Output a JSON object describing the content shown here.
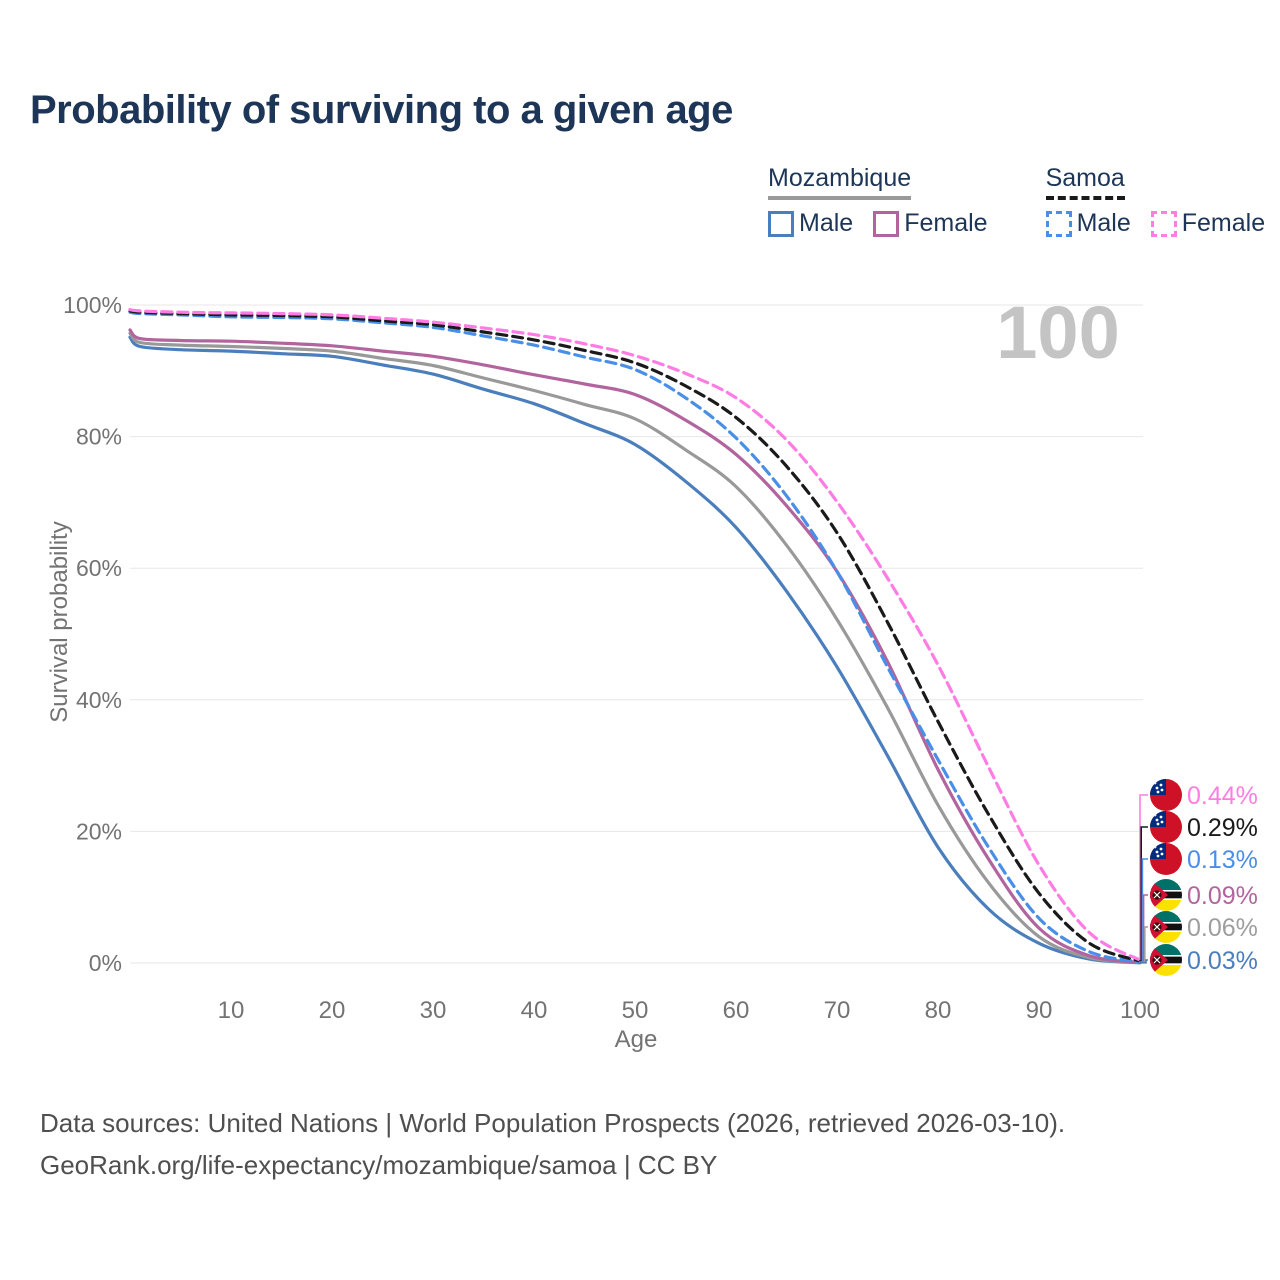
{
  "title": "Probability of surviving to a given age",
  "watermark": "100",
  "legend": {
    "groups": [
      {
        "label": "Mozambique",
        "line_style": "solid",
        "line_color": "#999999",
        "items": [
          {
            "label": "Male",
            "color": "#4a7ebc",
            "dashed": false
          },
          {
            "label": "Female",
            "color": "#b2649e",
            "dashed": false
          }
        ]
      },
      {
        "label": "Samoa",
        "line_style": "dashed",
        "line_color": "#1a1a1a",
        "items": [
          {
            "label": "Male",
            "color": "#4a8fe7",
            "dashed": true
          },
          {
            "label": "Female",
            "color": "#ff7ce4",
            "dashed": true
          }
        ]
      }
    ]
  },
  "colors": {
    "title": "#1d3557",
    "legend_text": "#1d3557",
    "axis_text": "#737373",
    "gridline": "#e7e7e7",
    "watermark": "#c4c4c4",
    "footer_text": "#4f4f4f"
  },
  "chart_data": {
    "type": "line",
    "title": "Probability of surviving to a given age",
    "xlabel": "Age",
    "ylabel": "Survival probability",
    "xlim": [
      0,
      100
    ],
    "ylim": [
      0,
      100
    ],
    "x_ticks": [
      10,
      20,
      30,
      40,
      50,
      60,
      70,
      80,
      90,
      100
    ],
    "y_ticks_percent": [
      0,
      20,
      40,
      60,
      80,
      100
    ],
    "grid": "horizontal",
    "legend_position": "top-right",
    "ages": [
      0,
      1,
      5,
      10,
      15,
      20,
      25,
      30,
      35,
      40,
      45,
      50,
      55,
      60,
      65,
      70,
      75,
      80,
      85,
      90,
      95,
      100
    ],
    "series": [
      {
        "name": "Mozambique Male",
        "country": "Mozambique",
        "sex": "Male",
        "line_style": "solid",
        "color": "#4a7ebc",
        "values": [
          95.1,
          93.7,
          93.2,
          93.0,
          92.6,
          92.2,
          90.9,
          89.5,
          87.2,
          85.0,
          82.0,
          78.8,
          73.2,
          66.2,
          56.5,
          45.0,
          31.5,
          17.6,
          8.2,
          3.0,
          0.6,
          0.03
        ]
      },
      {
        "name": "Mozambique",
        "country": "Mozambique",
        "sex": "Both",
        "line_style": "solid",
        "color": "#999999",
        "values": [
          95.7,
          94.3,
          93.9,
          93.7,
          93.4,
          93.0,
          91.9,
          90.8,
          88.9,
          87.0,
          84.9,
          82.7,
          78.0,
          72.4,
          63.5,
          52.2,
          38.8,
          24.0,
          12.2,
          4.0,
          0.8,
          0.06
        ]
      },
      {
        "name": "Mozambique Female",
        "country": "Mozambique",
        "sex": "Female",
        "line_style": "solid",
        "color": "#b2649e",
        "values": [
          96.2,
          94.9,
          94.6,
          94.5,
          94.2,
          93.8,
          93.0,
          92.2,
          90.9,
          89.4,
          88.0,
          86.4,
          82.5,
          77.3,
          69.5,
          59.5,
          45.8,
          29.4,
          15.8,
          5.3,
          1.1,
          0.09
        ]
      },
      {
        "name": "Samoa Male",
        "country": "Samoa",
        "sex": "Male",
        "line_style": "dashed",
        "color": "#4a8fe7",
        "values": [
          98.9,
          98.7,
          98.5,
          98.2,
          98.1,
          97.9,
          97.3,
          96.6,
          95.3,
          93.9,
          92.1,
          90.2,
          85.9,
          79.8,
          71.0,
          59.5,
          45.0,
          30.9,
          17.6,
          6.8,
          1.7,
          0.13
        ]
      },
      {
        "name": "Samoa",
        "country": "Samoa",
        "sex": "Both",
        "line_style": "dashed",
        "color": "#1a1a1a",
        "values": [
          99.1,
          98.9,
          98.7,
          98.5,
          98.4,
          98.2,
          97.6,
          97.0,
          95.9,
          94.7,
          93.1,
          91.2,
          87.7,
          82.9,
          75.5,
          65.4,
          51.8,
          36.7,
          22.6,
          10.6,
          3.0,
          0.29
        ]
      },
      {
        "name": "Samoa Female",
        "country": "Samoa",
        "sex": "Female",
        "line_style": "dashed",
        "color": "#ff7ce4",
        "values": [
          99.3,
          99.1,
          98.9,
          98.8,
          98.7,
          98.5,
          98.0,
          97.4,
          96.5,
          95.5,
          94.1,
          92.3,
          89.6,
          85.9,
          79.5,
          70.1,
          58.5,
          45.3,
          29.8,
          14.9,
          4.6,
          0.44
        ]
      }
    ]
  },
  "end_labels": [
    {
      "series": "Samoa Female",
      "flag": "samoa",
      "value": "0.44%",
      "color": "#ff7ce4"
    },
    {
      "series": "Samoa",
      "flag": "samoa",
      "value": "0.29%",
      "color": "#1a1a1a"
    },
    {
      "series": "Samoa Male",
      "flag": "samoa",
      "value": "0.13%",
      "color": "#4a8fe7"
    },
    {
      "series": "Mozambique Female",
      "flag": "mozambique",
      "value": "0.09%",
      "color": "#b2649e"
    },
    {
      "series": "Mozambique",
      "flag": "mozambique",
      "value": "0.06%",
      "color": "#9e9e9e"
    },
    {
      "series": "Mozambique Male",
      "flag": "mozambique",
      "value": "0.03%",
      "color": "#4a7ebc"
    }
  ],
  "footer": {
    "line1": "Data sources: United Nations | World Population Prospects (2026, retrieved 2026-03-10).",
    "line2": "GeoRank.org/life-expectancy/mozambique/samoa | CC BY"
  }
}
